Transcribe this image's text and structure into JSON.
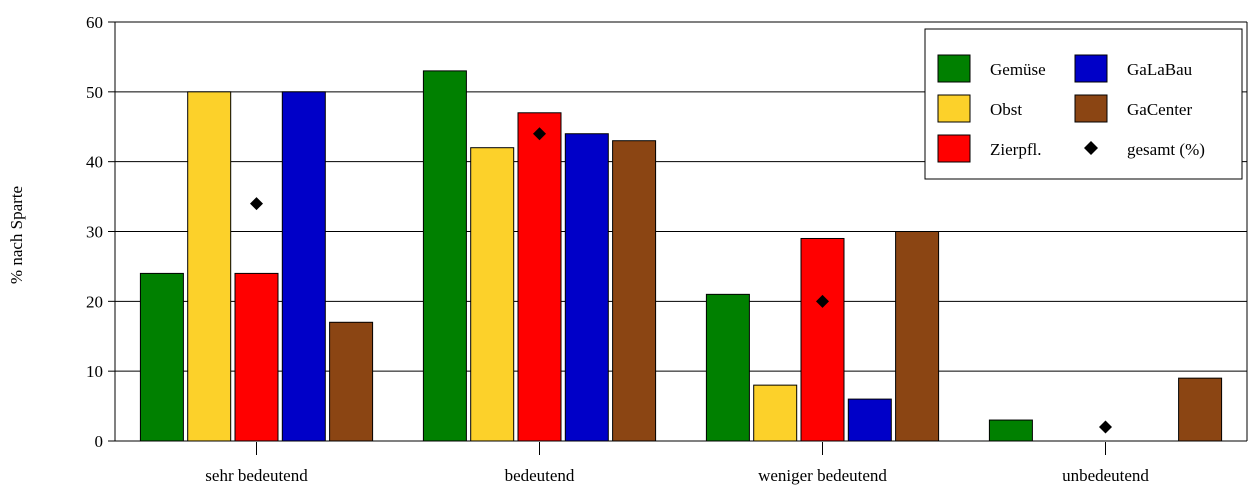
{
  "chart_data": {
    "type": "bar",
    "title": "",
    "xlabel": "",
    "ylabel": "% nach Sparte",
    "ylim": [
      0,
      60
    ],
    "yticks": [
      0,
      10,
      20,
      30,
      40,
      50,
      60
    ],
    "grid": true,
    "legend_position": "top-right",
    "categories": [
      "sehr bedeutend",
      "bedeutend",
      "weniger bedeutend",
      "unbedeutend"
    ],
    "series": [
      {
        "name": "Gemüse",
        "color": "#008000",
        "values": [
          24,
          53,
          21,
          3
        ]
      },
      {
        "name": "Obst",
        "color": "#FCD12A",
        "values": [
          50,
          42,
          8,
          0
        ]
      },
      {
        "name": "Zierpfl.",
        "color": "#FF0000",
        "values": [
          24,
          47,
          29,
          0
        ]
      },
      {
        "name": "GaLaBau",
        "color": "#0000C8",
        "values": [
          50,
          44,
          6,
          0
        ]
      },
      {
        "name": "GaCenter",
        "color": "#8B4513",
        "values": [
          17,
          43,
          30,
          9
        ]
      }
    ],
    "overlay": {
      "name": "gesamt (%)",
      "marker": "diamond",
      "color": "#000000",
      "values": [
        34,
        44,
        20,
        2
      ]
    },
    "legend_order": [
      "Gemüse",
      "GaLaBau",
      "Obst",
      "GaCenter",
      "Zierpfl.",
      "gesamt (%)"
    ]
  }
}
